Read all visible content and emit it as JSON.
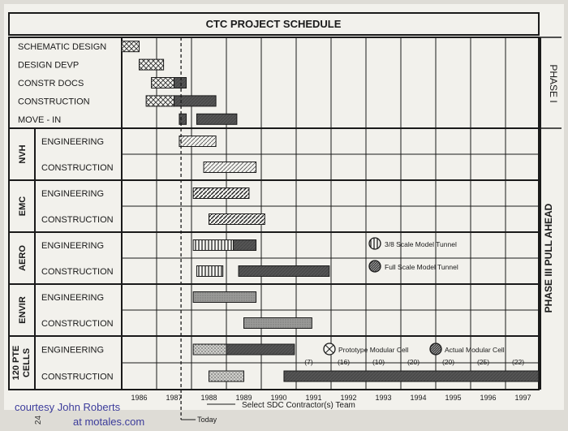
{
  "chart_data": {
    "type": "gantt",
    "title": "CTC PROJECT SCHEDULE",
    "years": [
      "1986",
      "1987",
      "1988",
      "1989",
      "1990",
      "1991",
      "1992",
      "1993",
      "1994",
      "1995",
      "1996",
      "1997"
    ],
    "today_label": "Today",
    "today_year": 1987.7,
    "contractor_note": "Select SDC Contractor(s) Team",
    "phase_labels": {
      "phase1": "PHASE I",
      "phase3": "PHASE III PULL AHEAD"
    },
    "groups": [
      {
        "name": "",
        "rows": [
          {
            "label": "SCHEMATIC DESIGN",
            "bars": [
              {
                "start": 1986.0,
                "end": 1986.5,
                "pattern": "crosshatch"
              }
            ]
          },
          {
            "label": "DESIGN DEVP",
            "bars": [
              {
                "start": 1986.5,
                "end": 1987.2,
                "pattern": "crosshatch"
              }
            ]
          },
          {
            "label": "CONSTR DOCS",
            "bars": [
              {
                "start": 1986.85,
                "end": 1987.5,
                "pattern": "crosshatch"
              },
              {
                "start": 1987.5,
                "end": 1987.85,
                "pattern": "dark"
              }
            ]
          },
          {
            "label": "CONSTRUCTION",
            "bars": [
              {
                "start": 1986.7,
                "end": 1987.5,
                "pattern": "crosshatch"
              },
              {
                "start": 1987.5,
                "end": 1988.7,
                "pattern": "dark"
              }
            ]
          },
          {
            "label": "MOVE - IN",
            "bars": [
              {
                "start": 1987.65,
                "end": 1987.85,
                "pattern": "dark"
              },
              {
                "start": 1988.15,
                "end": 1989.3,
                "pattern": "dark"
              }
            ]
          }
        ]
      },
      {
        "name": "NVH",
        "rows": [
          {
            "label": "ENGINEERING",
            "bars": [
              {
                "start": 1987.65,
                "end": 1988.7,
                "pattern": "diagonal-light"
              }
            ]
          },
          {
            "label": "CONSTRUCTION",
            "bars": [
              {
                "start": 1988.35,
                "end": 1989.85,
                "pattern": "diagonal-light"
              }
            ]
          }
        ]
      },
      {
        "name": "EMC",
        "rows": [
          {
            "label": "ENGINEERING",
            "bars": [
              {
                "start": 1988.05,
                "end": 1989.65,
                "pattern": "diagonal"
              }
            ]
          },
          {
            "label": "CONSTRUCTION",
            "bars": [
              {
                "start": 1988.5,
                "end": 1990.1,
                "pattern": "diagonal"
              }
            ]
          }
        ]
      },
      {
        "name": "AERO",
        "rows": [
          {
            "label": "ENGINEERING",
            "bars": [
              {
                "start": 1988.05,
                "end": 1989.2,
                "pattern": "vertical"
              },
              {
                "start": 1989.2,
                "end": 1989.85,
                "pattern": "dark"
              }
            ]
          },
          {
            "label": "CONSTRUCTION",
            "bars": [
              {
                "start": 1988.15,
                "end": 1988.9,
                "pattern": "vertical"
              },
              {
                "start": 1989.35,
                "end": 1991.95,
                "pattern": "dark"
              }
            ]
          }
        ]
      },
      {
        "name": "ENVIR",
        "rows": [
          {
            "label": "ENGINEERING",
            "bars": [
              {
                "start": 1988.05,
                "end": 1989.85,
                "pattern": "grey"
              }
            ]
          },
          {
            "label": "CONSTRUCTION",
            "bars": [
              {
                "start": 1989.5,
                "end": 1991.45,
                "pattern": "grey"
              }
            ]
          }
        ]
      },
      {
        "name": "120 PTE CELLS",
        "rows": [
          {
            "label": "ENGINEERING",
            "bars": [
              {
                "start": 1988.05,
                "end": 1989.0,
                "pattern": "dots"
              },
              {
                "start": 1989.0,
                "end": 1990.95,
                "pattern": "dark"
              }
            ]
          },
          {
            "label": "CONSTRUCTION",
            "bars": [
              {
                "start": 1988.5,
                "end": 1989.5,
                "pattern": "dots"
              },
              {
                "start": 1990.65,
                "end": 1997.95,
                "pattern": "dark"
              }
            ]
          }
        ]
      }
    ],
    "cell_counts": [
      {
        "year": 1991,
        "value": "(7)"
      },
      {
        "year": 1992,
        "value": "(16)"
      },
      {
        "year": 1993,
        "value": "(10)"
      },
      {
        "year": 1994,
        "value": "(20)"
      },
      {
        "year": 1995,
        "value": "(20)"
      },
      {
        "year": 1996,
        "value": "(25)"
      },
      {
        "year": 1997,
        "value": "(22)"
      }
    ],
    "legends": [
      {
        "label": "3/8 Scale Model Tunnel",
        "icon": "vertical"
      },
      {
        "label": "Full Scale Model Tunnel",
        "icon": "diagonal-dark"
      },
      {
        "label": "Prototype Modular Cell",
        "icon": "cross-circle"
      },
      {
        "label": "Actual Modular Cell",
        "icon": "diagonal-dark"
      }
    ]
  },
  "credit": {
    "line1": "courtesy John Roberts",
    "line2": "at motales.com"
  },
  "page_number": "24",
  "colors": {
    "paper": "#f2f1ec",
    "background": "#dedcd6",
    "ink": "#1a1a1a",
    "dark_bar": "#555555",
    "credit": "#3b3b9a"
  }
}
